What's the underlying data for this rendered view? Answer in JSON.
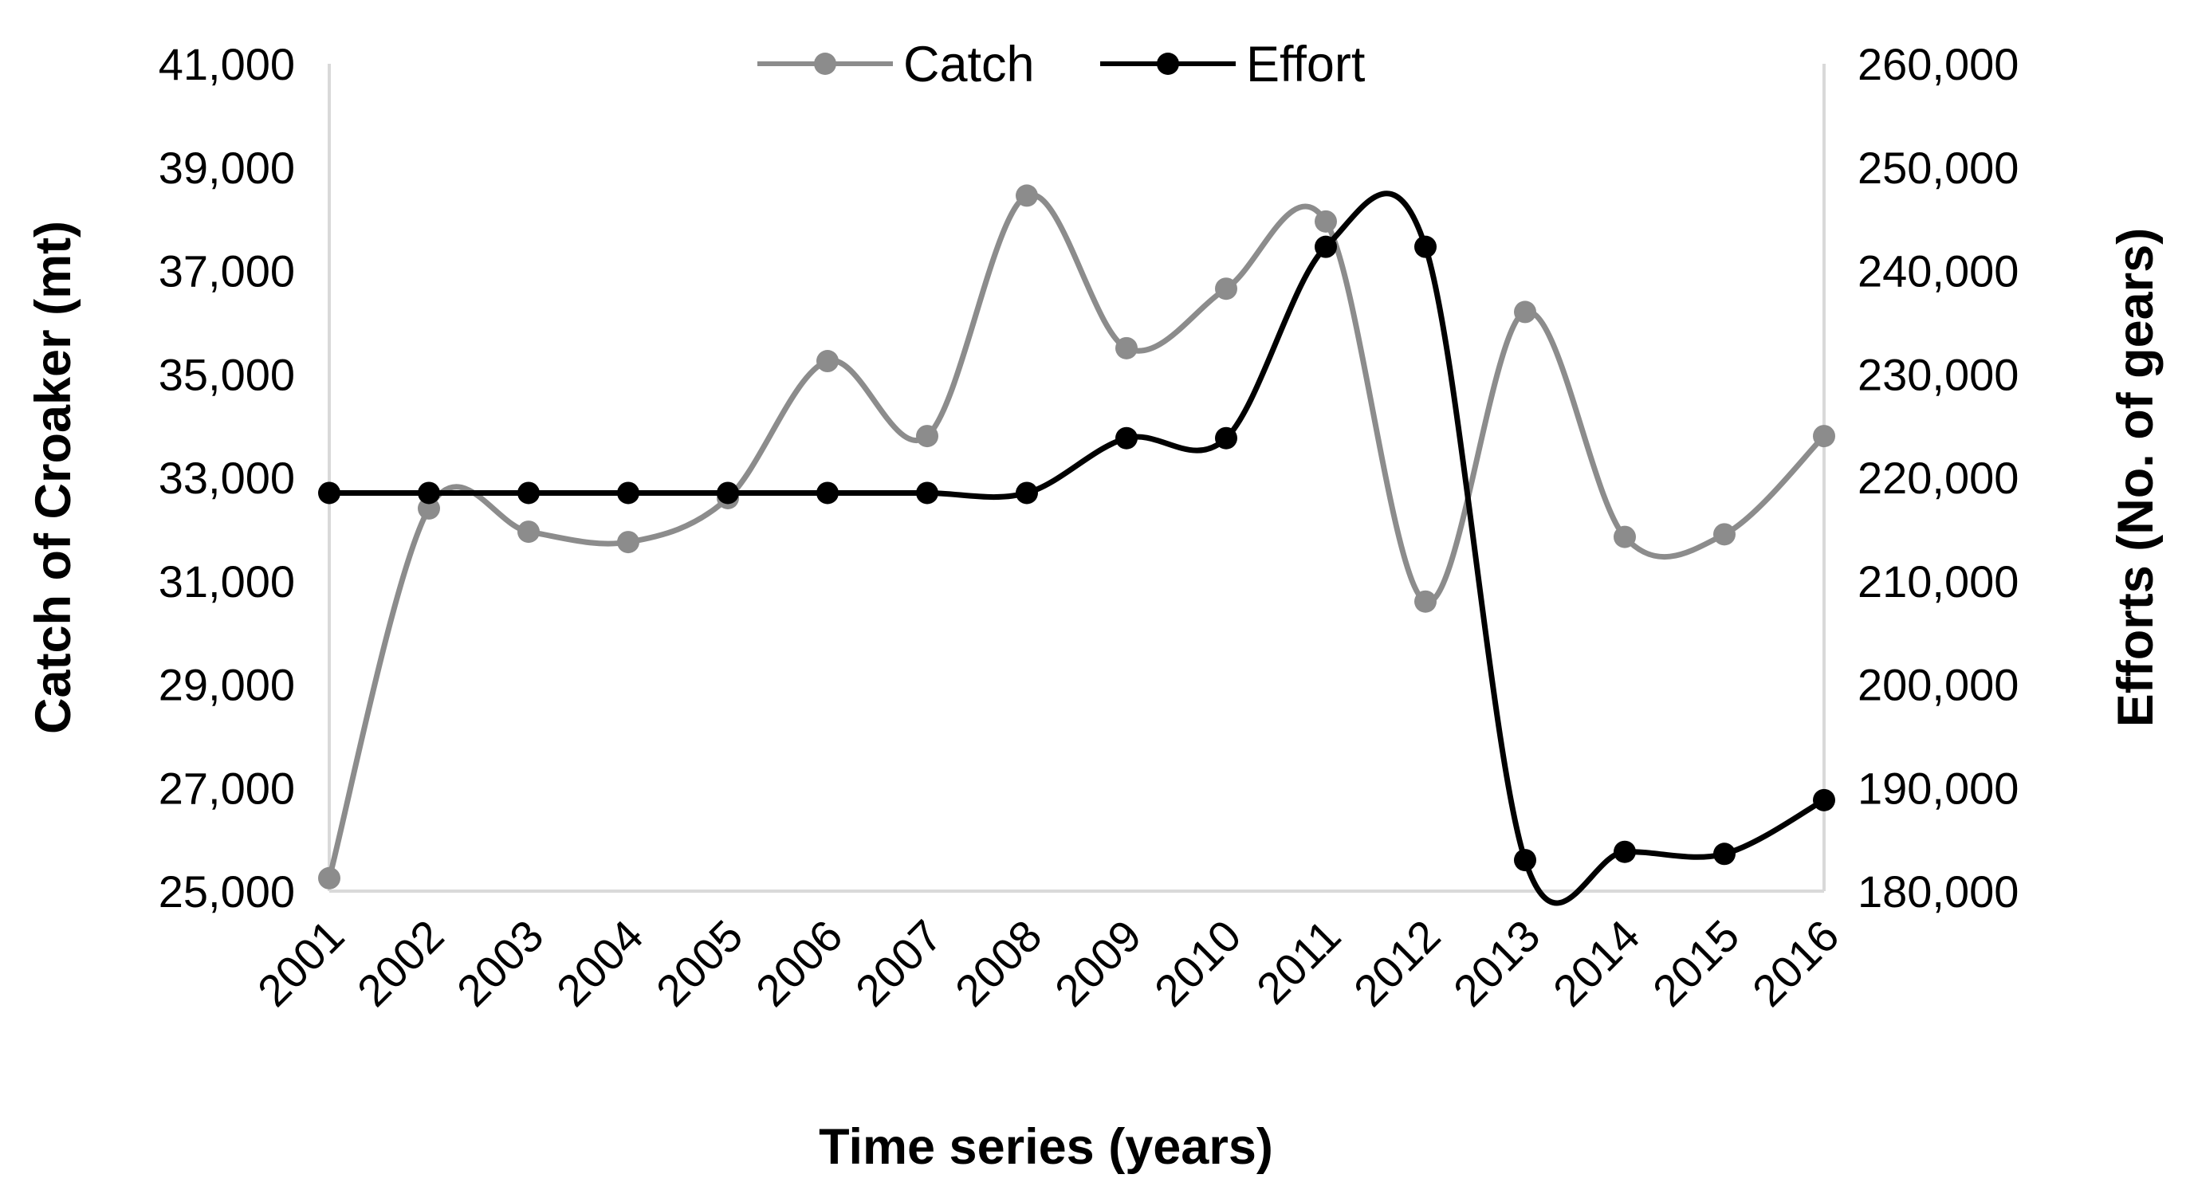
{
  "chart_data": {
    "type": "line",
    "title": "",
    "categories": [
      "2001",
      "2002",
      "2003",
      "2004",
      "2005",
      "2006",
      "2007",
      "2008",
      "2009",
      "2010",
      "2011",
      "2012",
      "2013",
      "2014",
      "2015",
      "2016"
    ],
    "xlabel": "Time series (years)",
    "ylabel_left": "Catch of Croaker (mt)",
    "ylabel_right": "Efforts (No. of gears)",
    "y_left": {
      "min": 25000,
      "max": 41000,
      "step": 2000,
      "tick_labels": [
        "25,000",
        "27,000",
        "29,000",
        "31,000",
        "33,000",
        "35,000",
        "37,000",
        "39,000",
        "41,000"
      ]
    },
    "y_right": {
      "min": 180000,
      "max": 260000,
      "step": 10000,
      "tick_labels": [
        "180,000",
        "190,000",
        "200,000",
        "210,000",
        "220,000",
        "230,000",
        "240,000",
        "250,000",
        "260,000"
      ]
    },
    "grid": false,
    "legend_position": "top-center",
    "series": [
      {
        "name": "Catch",
        "axis": "left",
        "color": "#8c8c8c",
        "values": [
          25250,
          32400,
          31950,
          31750,
          32600,
          35250,
          33800,
          38450,
          35500,
          36650,
          37950,
          30600,
          36200,
          31850,
          31900,
          33800
        ]
      },
      {
        "name": "Effort",
        "axis": "right",
        "color": "#000000",
        "values": [
          218500,
          218500,
          218500,
          218500,
          218500,
          218500,
          218500,
          218500,
          223800,
          223800,
          242300,
          242300,
          183000,
          183800,
          183600,
          188800
        ]
      }
    ]
  }
}
